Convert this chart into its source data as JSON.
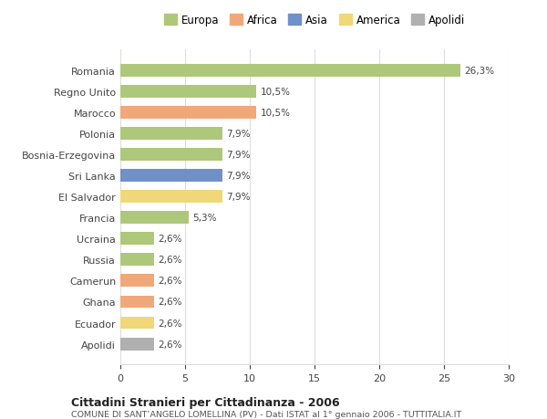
{
  "categories": [
    "Romania",
    "Regno Unito",
    "Marocco",
    "Polonia",
    "Bosnia-Erzegovina",
    "Sri Lanka",
    "El Salvador",
    "Francia",
    "Ucraina",
    "Russia",
    "Camerun",
    "Ghana",
    "Ecuador",
    "Apolidi"
  ],
  "values": [
    26.3,
    10.5,
    10.5,
    7.9,
    7.9,
    7.9,
    7.9,
    5.3,
    2.6,
    2.6,
    2.6,
    2.6,
    2.6,
    2.6
  ],
  "labels": [
    "26,3%",
    "10,5%",
    "10,5%",
    "7,9%",
    "7,9%",
    "7,9%",
    "7,9%",
    "5,3%",
    "2,6%",
    "2,6%",
    "2,6%",
    "2,6%",
    "2,6%",
    "2,6%"
  ],
  "colors": [
    "#adc87a",
    "#adc87a",
    "#f0a878",
    "#adc87a",
    "#adc87a",
    "#7090c8",
    "#f0d878",
    "#adc87a",
    "#adc87a",
    "#adc87a",
    "#f0a878",
    "#f0a878",
    "#f0d878",
    "#b0b0b0"
  ],
  "legend_labels": [
    "Europa",
    "Africa",
    "Asia",
    "America",
    "Apolidi"
  ],
  "legend_colors": [
    "#adc87a",
    "#f0a878",
    "#7090c8",
    "#f0d878",
    "#b0b0b0"
  ],
  "title": "Cittadini Stranieri per Cittadinanza - 2006",
  "subtitle": "COMUNE DI SANT’ANGELO LOMELLINA (PV) - Dati ISTAT al 1° gennaio 2006 - TUTTITALIA.IT",
  "xlim": [
    0,
    30
  ],
  "xticks": [
    0,
    5,
    10,
    15,
    20,
    25,
    30
  ],
  "background_color": "#ffffff",
  "bar_height": 0.6,
  "grid_color": "#dddddd"
}
